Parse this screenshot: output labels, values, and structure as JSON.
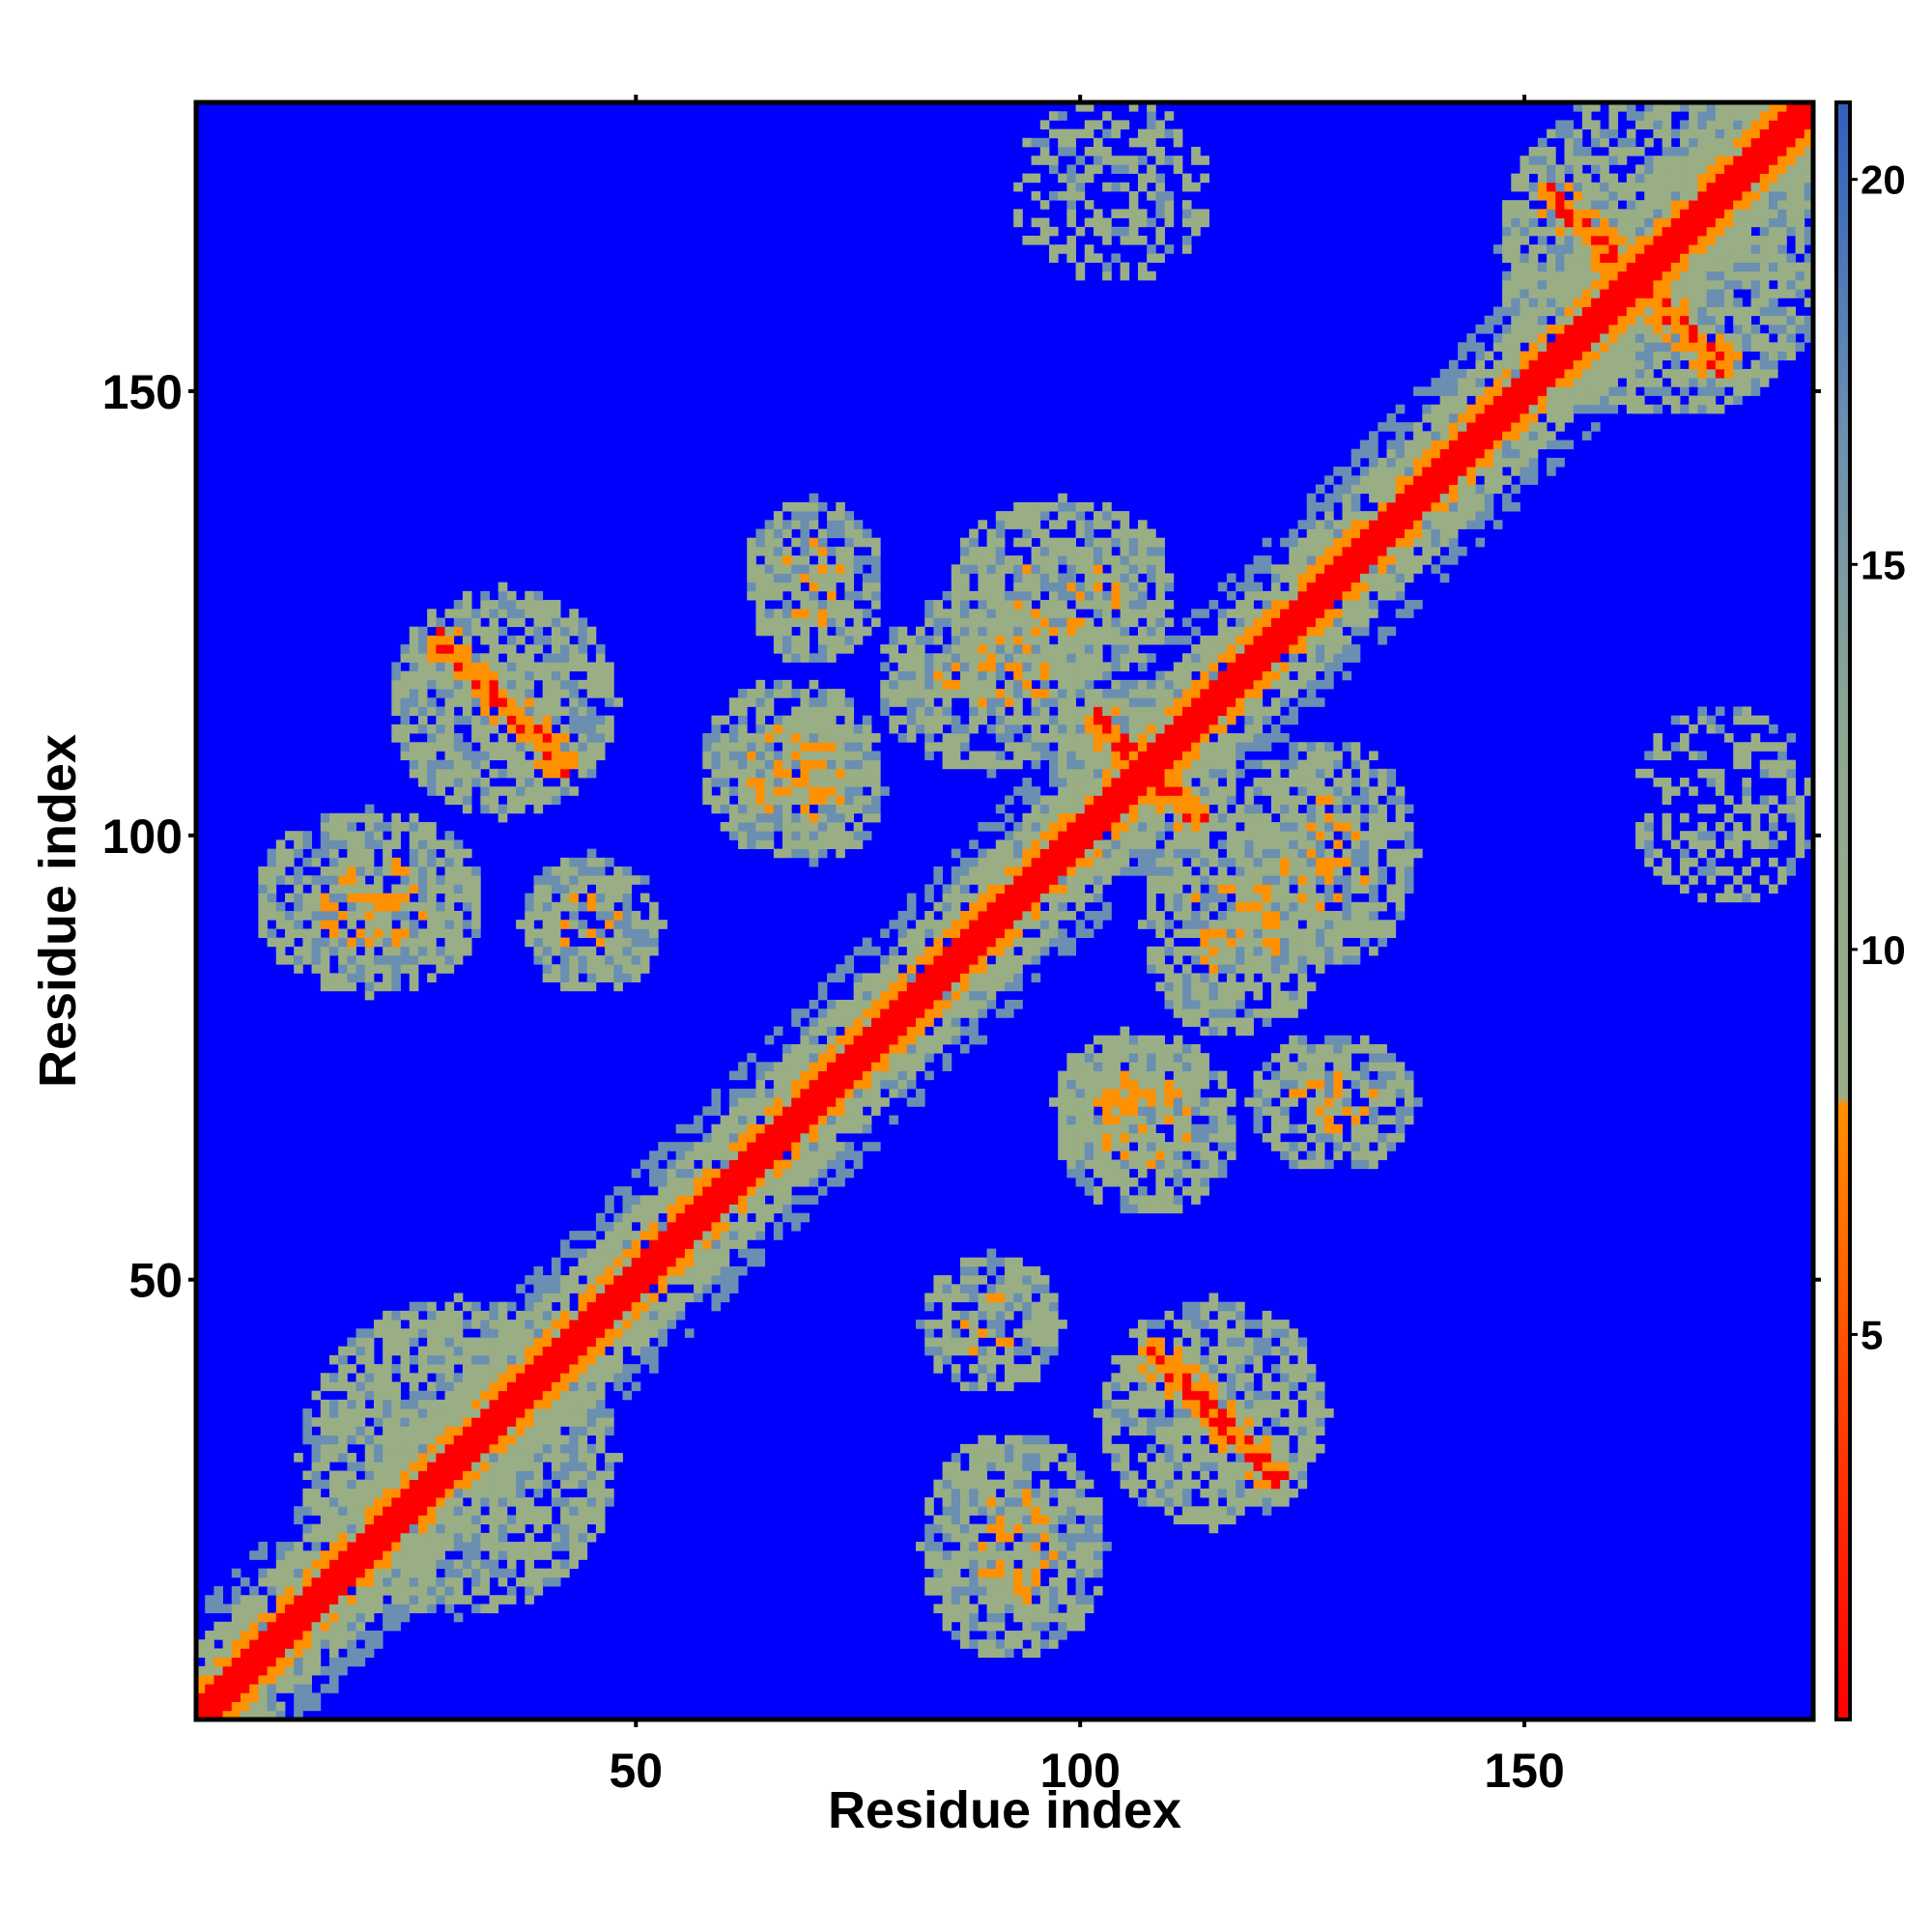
{
  "chart_data": {
    "type": "heatmap",
    "title": "",
    "xlabel": "Residue index",
    "ylabel": "Residue index",
    "n_residues": 182,
    "xlim": [
      1,
      182
    ],
    "ylim": [
      1,
      182
    ],
    "x_ticks": [
      "50",
      "100",
      "150"
    ],
    "y_ticks": [
      "50",
      "100",
      "150"
    ],
    "colorbar": {
      "range": [
        0,
        21
      ],
      "ticks": [
        "5",
        "10",
        "15",
        "20"
      ],
      "colors": {
        "contact": "#ff0000",
        "close": "#ff9000",
        "medium": "#9aae85",
        "far": "#6a8fb0",
        "background": "#0000ff"
      }
    },
    "grid": false,
    "contact_regions": [
      {
        "x": [
          1,
          182
        ],
        "y": [
          1,
          182
        ],
        "pattern": "diagonal",
        "distance": 0
      },
      {
        "x": [
          15,
          45
        ],
        "y": [
          15,
          45
        ],
        "pattern": "antidiagonal",
        "center": 30
      },
      {
        "x": [
          25,
          45
        ],
        "y": [
          105,
          125
        ],
        "pattern": "antidiagonal",
        "center": 150
      },
      {
        "x": [
          105,
          125
        ],
        "y": [
          25,
          45
        ],
        "pattern": "antidiagonal",
        "center": 150
      },
      {
        "x": [
          10,
          30
        ],
        "y": [
          85,
          100
        ],
        "pattern": "blob"
      },
      {
        "x": [
          85,
          100
        ],
        "y": [
          10,
          30
        ],
        "pattern": "blob"
      },
      {
        "x": [
          40,
          50
        ],
        "y": [
          85,
          95
        ],
        "pattern": "blob"
      },
      {
        "x": [
          85,
          95
        ],
        "y": [
          40,
          50
        ],
        "pattern": "blob"
      },
      {
        "x": [
          80,
          100
        ],
        "y": [
          110,
          125
        ],
        "pattern": "blob"
      },
      {
        "x": [
          110,
          125
        ],
        "y": [
          80,
          100
        ],
        "pattern": "blob"
      },
      {
        "x": [
          120,
          135
        ],
        "y": [
          88,
          108
        ],
        "pattern": "blob"
      },
      {
        "x": [
          88,
          108
        ],
        "y": [
          120,
          135
        ],
        "pattern": "blob"
      },
      {
        "x": [
          100,
          115
        ],
        "y": [
          100,
          115
        ],
        "pattern": "antidiagonal",
        "center": 215
      },
      {
        "x": [
          150,
          182
        ],
        "y": [
          150,
          182
        ],
        "pattern": "antidiagonal",
        "center": 325
      },
      {
        "x": [
          60,
          75
        ],
        "y": [
          100,
          115
        ],
        "pattern": "blob"
      },
      {
        "x": [
          100,
          115
        ],
        "y": [
          60,
          75
        ],
        "pattern": "blob"
      },
      {
        "x": [
          100,
          110
        ],
        "y": [
          65,
          75
        ],
        "pattern": "blob"
      },
      {
        "x": [
          65,
          75
        ],
        "y": [
          100,
          110
        ],
        "pattern": "blob"
      },
      {
        "x": [
          122,
          135
        ],
        "y": [
          65,
          75
        ],
        "pattern": "blob"
      },
      {
        "x": [
          65,
          75
        ],
        "y": [
          122,
          135
        ],
        "pattern": "blob"
      },
      {
        "x": [
          95,
          112
        ],
        "y": [
          165,
          180
        ],
        "pattern": "sparse"
      },
      {
        "x": [
          165,
          180
        ],
        "y": [
          95,
          112
        ],
        "pattern": "sparse"
      }
    ]
  }
}
